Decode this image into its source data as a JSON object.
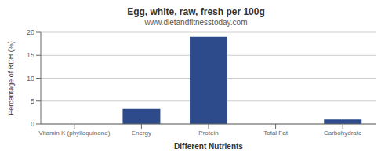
{
  "chart_data": {
    "type": "bar",
    "title": "Egg, white, raw, fresh per 100g",
    "subtitle": "www.dietandfitnesstoday.com",
    "xlabel": "Different Nutrients",
    "ylabel": "Percentage of RDH (%)",
    "categories": [
      "Vitamin K (phylloquinone)",
      "Energy",
      "Protein",
      "Total Fat",
      "Carbohydrate"
    ],
    "values": [
      0,
      3.3,
      19.0,
      0,
      1.0
    ],
    "color": "#2d4a8a",
    "ylim": [
      0,
      20
    ],
    "yticks": [
      0,
      5,
      10,
      15,
      20
    ],
    "grid": true
  }
}
